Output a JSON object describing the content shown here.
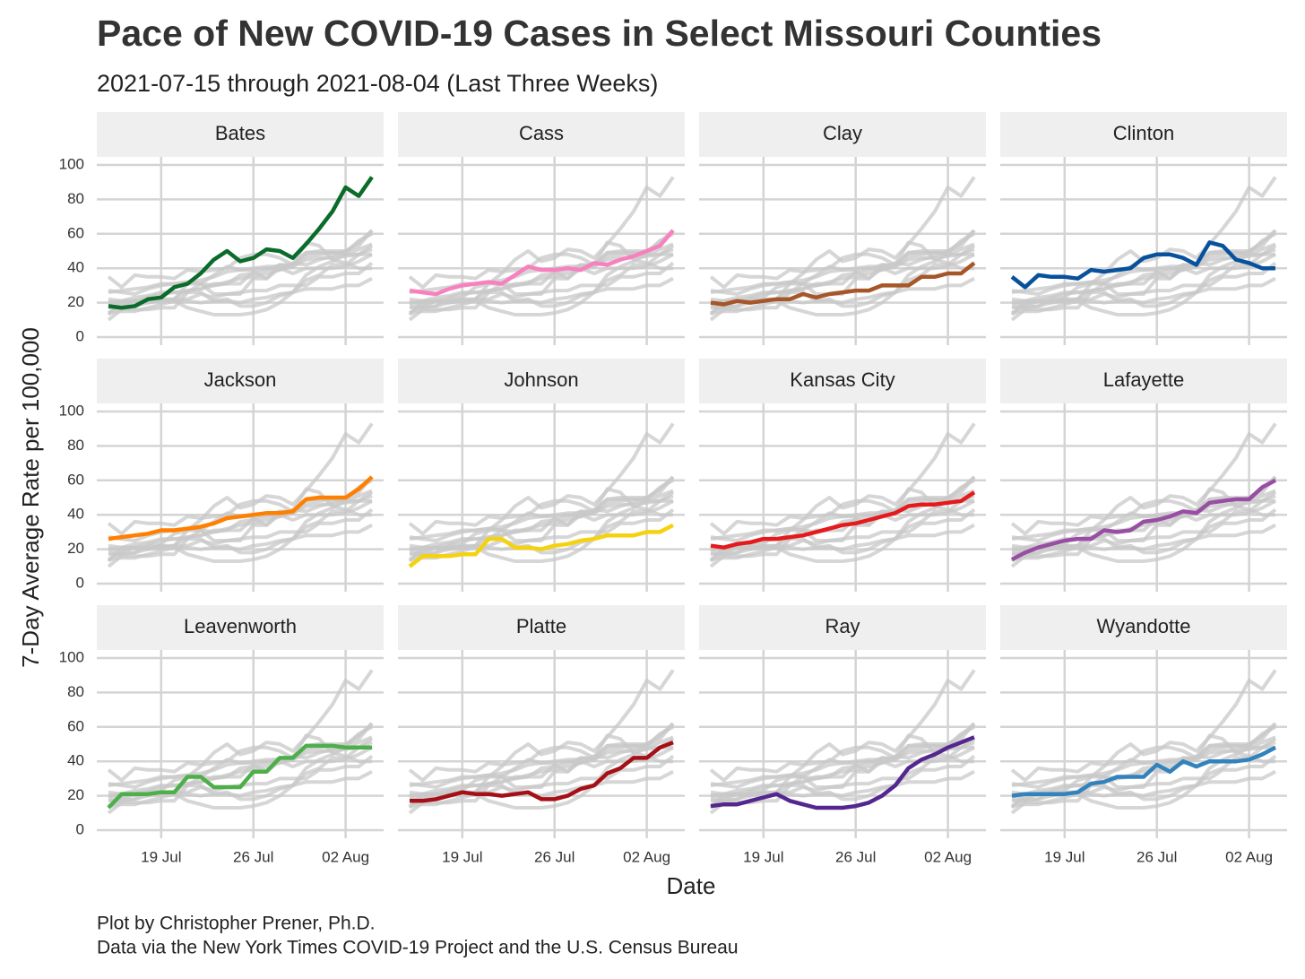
{
  "chart_data": {
    "type": "line",
    "title": "Pace of New COVID-19 Cases in Select Missouri Counties",
    "subtitle": "2021-07-15 through 2021-08-04 (Last Three Weeks)",
    "x_label": "Date",
    "y_label": "7-Day Average Rate per 100,000",
    "caption": [
      "Plot by Christopher Prener, Ph.D.",
      "Data via the New York Times COVID-19 Project and the U.S. Census Bureau"
    ],
    "x": [
      "15 Jul",
      "16 Jul",
      "17 Jul",
      "18 Jul",
      "19 Jul",
      "20 Jul",
      "21 Jul",
      "22 Jul",
      "23 Jul",
      "24 Jul",
      "25 Jul",
      "26 Jul",
      "27 Jul",
      "28 Jul",
      "29 Jul",
      "30 Jul",
      "31 Jul",
      "01 Aug",
      "02 Aug",
      "03 Aug",
      "04 Aug"
    ],
    "xticks": [
      "19 Jul",
      "26 Jul",
      "02 Aug"
    ],
    "ylim": [
      -4.7,
      104.7
    ],
    "yticks": [
      0,
      20,
      40,
      60,
      80,
      100
    ],
    "grid": true,
    "background_color": "#c8c8c8",
    "series": [
      {
        "name": "Bates",
        "color": "#0b6b2a",
        "values": [
          18,
          17,
          18,
          22,
          23,
          29,
          31,
          37,
          45,
          50,
          44,
          46,
          51,
          50,
          46,
          54,
          63,
          73,
          87,
          82,
          93
        ]
      },
      {
        "name": "Cass",
        "color": "#f781bf",
        "values": [
          27,
          26,
          25,
          28,
          30,
          31,
          32,
          31,
          36,
          41,
          39,
          39,
          40,
          39,
          43,
          42,
          45,
          47,
          50,
          53,
          62
        ]
      },
      {
        "name": "Clay",
        "color": "#a65628",
        "values": [
          20,
          19,
          21,
          20,
          21,
          22,
          22,
          25,
          23,
          25,
          26,
          27,
          27,
          30,
          30,
          30,
          35,
          35,
          37,
          37,
          43
        ]
      },
      {
        "name": "Clinton",
        "color": "#08519c",
        "values": [
          35,
          29,
          36,
          35,
          35,
          34,
          39,
          38,
          39,
          40,
          46,
          48,
          48,
          46,
          42,
          55,
          53,
          45,
          43,
          40,
          40
        ]
      },
      {
        "name": "Jackson",
        "color": "#ff7f00",
        "values": [
          26,
          27,
          28,
          29,
          31,
          31,
          32,
          33,
          35,
          38,
          39,
          40,
          41,
          41,
          42,
          49,
          50,
          50,
          50,
          55,
          62
        ]
      },
      {
        "name": "Johnson",
        "color": "#f5d20f",
        "values": [
          10,
          16,
          16,
          16,
          17,
          17,
          26,
          26,
          21,
          21,
          20,
          22,
          23,
          25,
          26,
          28,
          28,
          28,
          30,
          30,
          34
        ]
      },
      {
        "name": "Kansas City",
        "color": "#e41a1c",
        "values": [
          22,
          21,
          23,
          24,
          26,
          26,
          27,
          28,
          30,
          32,
          34,
          35,
          37,
          39,
          41,
          45,
          46,
          46,
          47,
          48,
          53
        ]
      },
      {
        "name": "Lafayette",
        "color": "#984ea3",
        "values": [
          14,
          18,
          21,
          23,
          25,
          26,
          26,
          31,
          30,
          31,
          36,
          37,
          39,
          42,
          41,
          47,
          48,
          49,
          49,
          56,
          60
        ]
      },
      {
        "name": "Leavenworth",
        "color": "#4daf4a",
        "values": [
          13,
          21,
          21,
          21,
          22,
          22,
          31,
          31,
          25,
          25,
          25,
          34,
          34,
          42,
          42,
          49,
          49,
          49,
          48,
          48,
          48
        ]
      },
      {
        "name": "Platte",
        "color": "#a50f15",
        "values": [
          17,
          17,
          18,
          20,
          22,
          21,
          21,
          20,
          21,
          22,
          18,
          18,
          20,
          24,
          26,
          33,
          36,
          42,
          42,
          48,
          51
        ]
      },
      {
        "name": "Ray",
        "color": "#54278f",
        "values": [
          14,
          15,
          15,
          17,
          19,
          21,
          17,
          15,
          13,
          13,
          13,
          14,
          16,
          20,
          26,
          36,
          41,
          44,
          48,
          51,
          54
        ]
      },
      {
        "name": "Wyandotte",
        "color": "#3182bd",
        "values": [
          20,
          21,
          21,
          21,
          21,
          22,
          27,
          28,
          31,
          31,
          31,
          38,
          34,
          40,
          37,
          40,
          40,
          40,
          41,
          44,
          48
        ]
      }
    ]
  }
}
